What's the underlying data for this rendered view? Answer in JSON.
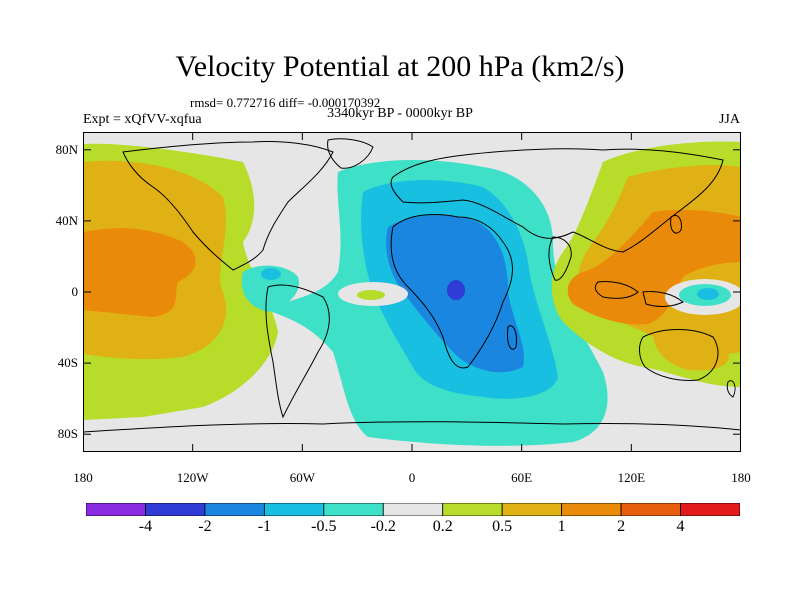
{
  "title": "Velocity Potential at 200 hPa (km2/s)",
  "stats": "rmsd= 0.772716 diff= -0.000170392",
  "experiment": "Expt = xQfVV-xqfua",
  "period": "3340kyr BP - 0000kyr BP",
  "season": "JJA",
  "axes": {
    "y_ticks": [
      {
        "label": "80N",
        "value": 80
      },
      {
        "label": "40N",
        "value": 40
      },
      {
        "label": "0",
        "value": 0
      },
      {
        "label": "40S",
        "value": -40
      },
      {
        "label": "80S",
        "value": -80
      }
    ],
    "x_ticks": [
      {
        "label": "180",
        "value": -180
      },
      {
        "label": "120W",
        "value": -120
      },
      {
        "label": "60W",
        "value": -60
      },
      {
        "label": "0",
        "value": 0
      },
      {
        "label": "60E",
        "value": 60
      },
      {
        "label": "120E",
        "value": 120
      },
      {
        "label": "180",
        "value": 180
      }
    ],
    "lon_range": [
      -180,
      180
    ],
    "lat_range": [
      -90,
      90
    ]
  },
  "colorbar": {
    "colors": [
      "#8a2be2",
      "#2f3dd6",
      "#1a86e0",
      "#19bfe0",
      "#3fe0c8",
      "#e6e6e6",
      "#b7dc2a",
      "#e0b114",
      "#ea8a0a",
      "#e8600f",
      "#e31a1c"
    ],
    "labels": [
      "-4",
      "-2",
      "-1",
      "-0.5",
      "-0.2",
      "0.2",
      "0.5",
      "1",
      "2",
      "4"
    ]
  },
  "colors": {
    "neutral": "#e6e6e6",
    "pos1": "#b7dc2a",
    "pos2": "#e0b114",
    "pos3": "#ea8a0a",
    "neg1": "#3fe0c8",
    "neg2": "#19bfe0",
    "neg3": "#1a86e0",
    "neg4": "#2f3dd6",
    "coast": "#000000"
  }
}
